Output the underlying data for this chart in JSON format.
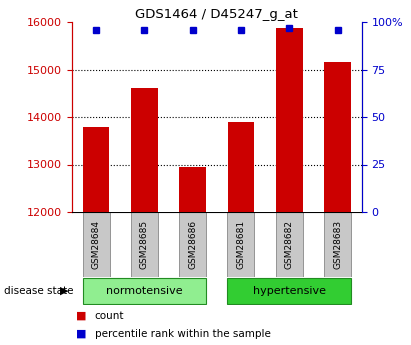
{
  "title": "GDS1464 / D45247_g_at",
  "samples": [
    "GSM28684",
    "GSM28685",
    "GSM28686",
    "GSM28681",
    "GSM28682",
    "GSM28683"
  ],
  "counts": [
    13800,
    14620,
    12950,
    13900,
    15880,
    15150
  ],
  "percentile_ranks": [
    96,
    96,
    96,
    96,
    97,
    96
  ],
  "ylim_left": [
    12000,
    16000
  ],
  "ylim_right": [
    0,
    100
  ],
  "yticks_left": [
    12000,
    13000,
    14000,
    15000,
    16000
  ],
  "yticks_right": [
    0,
    25,
    50,
    75,
    100
  ],
  "ytick_labels_right": [
    "0",
    "25",
    "50",
    "75",
    "100%"
  ],
  "normotensive_color": "#90EE90",
  "hypertensive_color": "#32CD32",
  "bar_color": "#CC0000",
  "point_color": "#0000CC",
  "axis_left_color": "#CC0000",
  "axis_right_color": "#0000CC",
  "sample_box_color": "#C8C8C8",
  "group_label": "disease state",
  "legend_count_label": "count",
  "legend_percentile_label": "percentile rank within the sample",
  "baseline": 12000,
  "bar_width": 0.55
}
